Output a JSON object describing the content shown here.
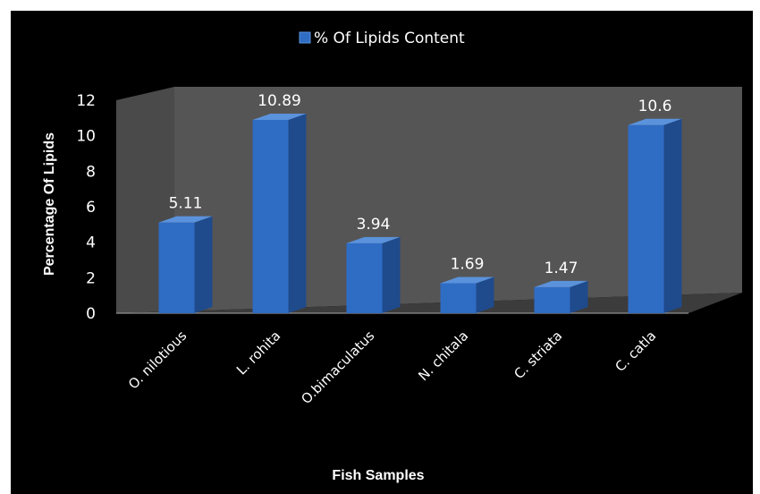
{
  "chart_data": {
    "type": "bar",
    "style": "3d-column",
    "categories": [
      "O. nilotious",
      "L. rohita",
      "O.bimaculatus",
      "N. chitala",
      "C. striata",
      "C. catla"
    ],
    "series": [
      {
        "name": "% Of Lipids Content",
        "values": [
          5.11,
          10.89,
          3.94,
          1.69,
          1.47,
          10.6
        ]
      }
    ],
    "data_labels": [
      "5.11",
      "10.89",
      "3.94",
      "1.69",
      "1.47",
      "10.6"
    ],
    "xlabel": "Fish Samples",
    "ylabel": "Percentage Of  Lipids",
    "ylim": [
      0,
      12
    ],
    "yticks": [
      "0",
      "2",
      "4",
      "6",
      "8",
      "10",
      "12"
    ],
    "legend_position": "top",
    "grid": false,
    "colors": {
      "background": "#000000",
      "wall": "#555555",
      "floor": "#3c3c3c",
      "bar_front": "#2f6cc4",
      "bar_side": "#1f4a8c",
      "bar_top": "#5b92dc",
      "text": "#ffffff"
    }
  }
}
